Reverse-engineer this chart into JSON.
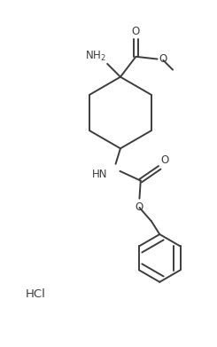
{
  "bg_color": "#ffffff",
  "line_color": "#3d3d3d",
  "text_color": "#3d3d3d",
  "line_width": 1.4,
  "font_size": 8.5,
  "hcl_font_size": 9.5,
  "fig_width": 2.45,
  "fig_height": 3.91,
  "dpi": 100,
  "xlim": [
    0,
    9
  ],
  "ylim": [
    0,
    14.5
  ]
}
